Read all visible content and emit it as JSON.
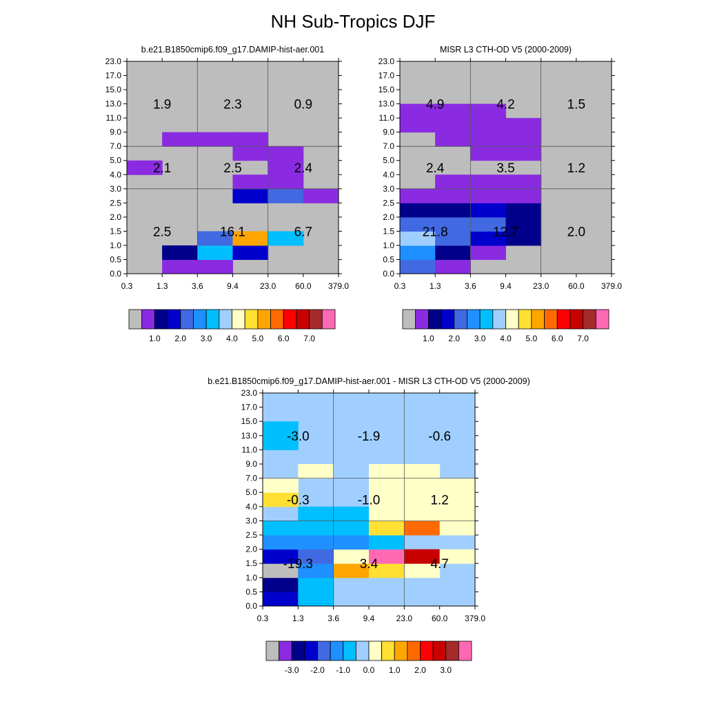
{
  "title": "NH Sub-Tropics DJF",
  "y_ticks": [
    "0.0",
    "0.5",
    "1.0",
    "1.5",
    "2.0",
    "2.5",
    "3.0",
    "4.0",
    "5.0",
    "7.0",
    "9.0",
    "11.0",
    "13.0",
    "15.0",
    "17.0",
    "23.0"
  ],
  "x_ticks": [
    "0.3",
    "1.3",
    "3.6",
    "9.4",
    "23.0",
    "60.0",
    "379.0"
  ],
  "colors": {
    "gray": "#bdbdbd",
    "violet": "#8a2be2",
    "navy": "#00008b",
    "blue": "#0000cd",
    "royal": "#4169e1",
    "dodger": "#1e90ff",
    "deepsky": "#00bfff",
    "lightsky": "#a0cfff",
    "cream": "#ffffc8",
    "gold": "#ffe033",
    "orange": "#ffa500",
    "darkorange": "#ff6a00",
    "red": "#ff0000",
    "darkred": "#c80000",
    "brown": "#a52a2a",
    "pink": "#ff69b4"
  },
  "chart_data": [
    {
      "type": "heatmap",
      "title": "b.e21.B1850cmip6.f09_g17.DAMIP-hist-aer.001",
      "default_color": "gray",
      "cells": [
        {
          "r": 0,
          "c": 1,
          "color": "violet"
        },
        {
          "r": 0,
          "c": 2,
          "color": "violet"
        },
        {
          "r": 1,
          "c": 1,
          "color": "navy"
        },
        {
          "r": 1,
          "c": 2,
          "color": "deepsky"
        },
        {
          "r": 1,
          "c": 3,
          "color": "blue"
        },
        {
          "r": 2,
          "c": 2,
          "color": "royal"
        },
        {
          "r": 2,
          "c": 3,
          "color": "orange"
        },
        {
          "r": 2,
          "c": 4,
          "color": "deepsky"
        },
        {
          "r": 5,
          "c": 3,
          "color": "blue"
        },
        {
          "r": 5,
          "c": 4,
          "color": "royal"
        },
        {
          "r": 5,
          "c": 5,
          "color": "violet"
        },
        {
          "r": 6,
          "c": 3,
          "color": "violet"
        },
        {
          "r": 6,
          "c": 4,
          "color": "violet"
        },
        {
          "r": 7,
          "c": 0,
          "color": "violet"
        },
        {
          "r": 7,
          "c": 4,
          "color": "violet"
        },
        {
          "r": 8,
          "c": 3,
          "color": "violet"
        },
        {
          "r": 8,
          "c": 4,
          "color": "violet"
        },
        {
          "r": 9,
          "c": 1,
          "color": "violet"
        },
        {
          "r": 9,
          "c": 2,
          "color": "violet"
        },
        {
          "r": 9,
          "c": 3,
          "color": "violet"
        }
      ],
      "labels": [
        [
          "2.5",
          "16.1",
          "6.7"
        ],
        [
          "2.1",
          "2.5",
          "2.4"
        ],
        [
          "1.9",
          "2.3",
          "0.9"
        ]
      ],
      "colorbar": {
        "colors": [
          "gray",
          "violet",
          "navy",
          "blue",
          "royal",
          "dodger",
          "deepsky",
          "lightsky",
          "cream",
          "gold",
          "orange",
          "darkorange",
          "red",
          "darkred",
          "brown",
          "pink"
        ],
        "labels": [
          "1.0",
          "2.0",
          "3.0",
          "4.0",
          "5.0",
          "6.0",
          "7.0"
        ]
      }
    },
    {
      "type": "heatmap",
      "title": "MISR L3 CTH-OD V5 (2000-2009)",
      "default_color": "gray",
      "cells": [
        {
          "r": 0,
          "c": 0,
          "color": "royal"
        },
        {
          "r": 0,
          "c": 1,
          "color": "violet"
        },
        {
          "r": 1,
          "c": 0,
          "color": "dodger"
        },
        {
          "r": 1,
          "c": 1,
          "color": "navy"
        },
        {
          "r": 1,
          "c": 2,
          "color": "violet"
        },
        {
          "r": 2,
          "c": 0,
          "color": "lightsky"
        },
        {
          "r": 2,
          "c": 1,
          "color": "royal"
        },
        {
          "r": 2,
          "c": 2,
          "color": "blue"
        },
        {
          "r": 2,
          "c": 3,
          "color": "navy"
        },
        {
          "r": 3,
          "c": 0,
          "color": "royal"
        },
        {
          "r": 3,
          "c": 1,
          "color": "royal"
        },
        {
          "r": 3,
          "c": 2,
          "color": "royal"
        },
        {
          "r": 3,
          "c": 3,
          "color": "navy"
        },
        {
          "r": 4,
          "c": 0,
          "color": "navy"
        },
        {
          "r": 4,
          "c": 1,
          "color": "navy"
        },
        {
          "r": 4,
          "c": 2,
          "color": "blue"
        },
        {
          "r": 4,
          "c": 3,
          "color": "navy"
        },
        {
          "r": 5,
          "c": 0,
          "color": "violet"
        },
        {
          "r": 5,
          "c": 1,
          "color": "violet"
        },
        {
          "r": 5,
          "c": 2,
          "color": "violet"
        },
        {
          "r": 5,
          "c": 3,
          "color": "violet"
        },
        {
          "r": 6,
          "c": 1,
          "color": "violet"
        },
        {
          "r": 6,
          "c": 2,
          "color": "violet"
        },
        {
          "r": 6,
          "c": 3,
          "color": "violet"
        },
        {
          "r": 8,
          "c": 2,
          "color": "violet"
        },
        {
          "r": 8,
          "c": 3,
          "color": "violet"
        },
        {
          "r": 9,
          "c": 1,
          "color": "violet"
        },
        {
          "r": 9,
          "c": 2,
          "color": "violet"
        },
        {
          "r": 9,
          "c": 3,
          "color": "violet"
        },
        {
          "r": 10,
          "c": 0,
          "color": "violet"
        },
        {
          "r": 10,
          "c": 1,
          "color": "violet"
        },
        {
          "r": 10,
          "c": 2,
          "color": "violet"
        },
        {
          "r": 10,
          "c": 3,
          "color": "violet"
        },
        {
          "r": 11,
          "c": 0,
          "color": "violet"
        },
        {
          "r": 11,
          "c": 1,
          "color": "violet"
        },
        {
          "r": 11,
          "c": 2,
          "color": "violet"
        }
      ],
      "labels": [
        [
          "21.8",
          "12.7",
          "2.0"
        ],
        [
          "2.4",
          "3.5",
          "1.2"
        ],
        [
          "4.9",
          "4.2",
          "1.5"
        ]
      ],
      "colorbar": {
        "colors": [
          "gray",
          "violet",
          "navy",
          "blue",
          "royal",
          "dodger",
          "deepsky",
          "lightsky",
          "cream",
          "gold",
          "orange",
          "darkorange",
          "red",
          "darkred",
          "brown",
          "pink"
        ],
        "labels": [
          "1.0",
          "2.0",
          "3.0",
          "4.0",
          "5.0",
          "6.0",
          "7.0"
        ]
      }
    },
    {
      "type": "heatmap",
      "title": "b.e21.B1850cmip6.f09_g17.DAMIP-hist-aer.001 - MISR L3 CTH-OD V5 (2000-2009)",
      "default_color": "lightsky",
      "cells": [
        {
          "r": 0,
          "c": 0,
          "color": "blue"
        },
        {
          "r": 0,
          "c": 1,
          "color": "deepsky"
        },
        {
          "r": 1,
          "c": 0,
          "color": "navy"
        },
        {
          "r": 1,
          "c": 1,
          "color": "deepsky"
        },
        {
          "r": 2,
          "c": 0,
          "color": "gray"
        },
        {
          "r": 2,
          "c": 1,
          "color": "dodger"
        },
        {
          "r": 2,
          "c": 2,
          "color": "orange"
        },
        {
          "r": 2,
          "c": 3,
          "color": "gold"
        },
        {
          "r": 2,
          "c": 4,
          "color": "cream"
        },
        {
          "r": 3,
          "c": 0,
          "color": "blue"
        },
        {
          "r": 3,
          "c": 1,
          "color": "royal"
        },
        {
          "r": 3,
          "c": 2,
          "color": "cream"
        },
        {
          "r": 3,
          "c": 3,
          "color": "pink"
        },
        {
          "r": 3,
          "c": 4,
          "color": "darkred"
        },
        {
          "r": 3,
          "c": 5,
          "color": "cream"
        },
        {
          "r": 4,
          "c": 0,
          "color": "dodger"
        },
        {
          "r": 4,
          "c": 1,
          "color": "dodger"
        },
        {
          "r": 4,
          "c": 2,
          "color": "dodger"
        },
        {
          "r": 4,
          "c": 3,
          "color": "deepsky"
        },
        {
          "r": 5,
          "c": 0,
          "color": "deepsky"
        },
        {
          "r": 5,
          "c": 1,
          "color": "deepsky"
        },
        {
          "r": 5,
          "c": 2,
          "color": "deepsky"
        },
        {
          "r": 5,
          "c": 3,
          "color": "gold"
        },
        {
          "r": 5,
          "c": 4,
          "color": "darkorange"
        },
        {
          "r": 5,
          "c": 5,
          "color": "cream"
        },
        {
          "r": 6,
          "c": 1,
          "color": "deepsky"
        },
        {
          "r": 6,
          "c": 2,
          "color": "deepsky"
        },
        {
          "r": 6,
          "c": 3,
          "color": "cream"
        },
        {
          "r": 6,
          "c": 4,
          "color": "cream"
        },
        {
          "r": 6,
          "c": 5,
          "color": "cream"
        },
        {
          "r": 7,
          "c": 0,
          "color": "gold"
        },
        {
          "r": 7,
          "c": 3,
          "color": "cream"
        },
        {
          "r": 7,
          "c": 4,
          "color": "cream"
        },
        {
          "r": 7,
          "c": 5,
          "color": "cream"
        },
        {
          "r": 8,
          "c": 0,
          "color": "cream"
        },
        {
          "r": 8,
          "c": 3,
          "color": "cream"
        },
        {
          "r": 8,
          "c": 4,
          "color": "cream"
        },
        {
          "r": 8,
          "c": 5,
          "color": "cream"
        },
        {
          "r": 9,
          "c": 1,
          "color": "cream"
        },
        {
          "r": 9,
          "c": 3,
          "color": "cream"
        },
        {
          "r": 9,
          "c": 4,
          "color": "cream"
        },
        {
          "r": 11,
          "c": 0,
          "color": "deepsky"
        },
        {
          "r": 12,
          "c": 0,
          "color": "deepsky"
        }
      ],
      "labels": [
        [
          "-19.3",
          "3.4",
          "4.7"
        ],
        [
          "-0.3",
          "-1.0",
          "1.2"
        ],
        [
          "-3.0",
          "-1.9",
          "-0.6"
        ]
      ],
      "colorbar": {
        "colors": [
          "gray",
          "violet",
          "navy",
          "blue",
          "royal",
          "dodger",
          "deepsky",
          "lightsky",
          "cream",
          "gold",
          "orange",
          "darkorange",
          "red",
          "darkred",
          "brown",
          "pink"
        ],
        "labels": [
          "-3.0",
          "-2.0",
          "-1.0",
          "0.0",
          "1.0",
          "2.0",
          "3.0"
        ]
      }
    }
  ]
}
